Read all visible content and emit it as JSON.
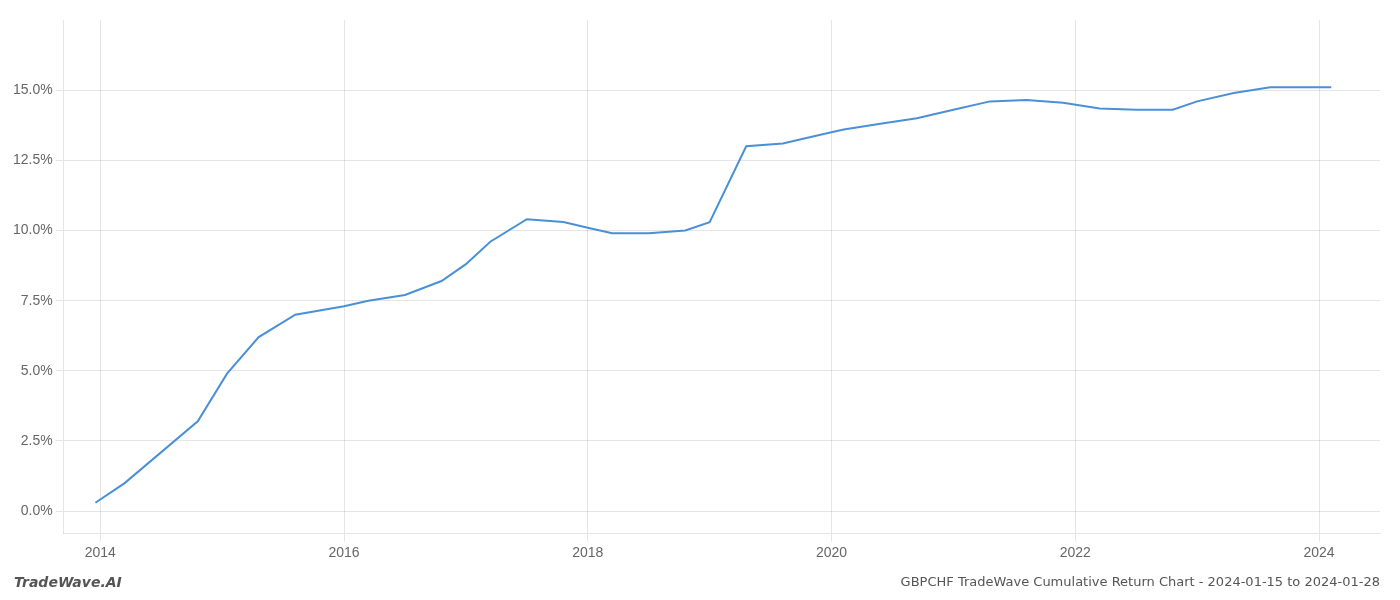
{
  "chart_data": {
    "type": "line",
    "title": "GBPCHF TradeWave Cumulative Return Chart - 2024-01-15 to 2024-01-28",
    "annotations": [
      "TradeWave.AI"
    ],
    "x": [
      2013.96,
      2014.2,
      2014.8,
      2015.04,
      2015.3,
      2015.6,
      2016.0,
      2016.2,
      2016.5,
      2016.8,
      2017.0,
      2017.2,
      2017.5,
      2017.8,
      2018.0,
      2018.2,
      2018.5,
      2018.8,
      2019.0,
      2019.3,
      2019.6,
      2019.9,
      2020.1,
      2020.4,
      2020.7,
      2021.0,
      2021.3,
      2021.6,
      2021.9,
      2022.2,
      2022.5,
      2022.8,
      2023.0,
      2023.3,
      2023.6,
      2023.9,
      2024.1
    ],
    "values": [
      0.003,
      0.01,
      0.032,
      0.049,
      0.062,
      0.07,
      0.073,
      0.075,
      0.077,
      0.082,
      0.088,
      0.096,
      0.104,
      0.103,
      0.101,
      0.099,
      0.099,
      0.1,
      0.103,
      0.13,
      0.131,
      0.134,
      0.136,
      0.138,
      0.14,
      0.143,
      0.146,
      0.1465,
      0.1455,
      0.1435,
      0.143,
      0.143,
      0.146,
      0.149,
      0.151,
      0.151,
      0.151
    ],
    "color": "#4a90d9",
    "xlim": [
      2013.7,
      2024.5
    ],
    "xticks": [
      2014,
      2016,
      2018,
      2020,
      2022,
      2024
    ],
    "ylim": [
      -0.008,
      0.175
    ],
    "yticks": [
      {
        "value": 0.0,
        "label": "0.0%"
      },
      {
        "value": 0.025,
        "label": "2.5%"
      },
      {
        "value": 0.05,
        "label": "5.0%"
      },
      {
        "value": 0.075,
        "label": "7.5%"
      },
      {
        "value": 0.1,
        "label": "10.0%"
      },
      {
        "value": 0.125,
        "label": "12.5%"
      },
      {
        "value": 0.15,
        "label": "15.0%"
      }
    ],
    "grid": true
  }
}
